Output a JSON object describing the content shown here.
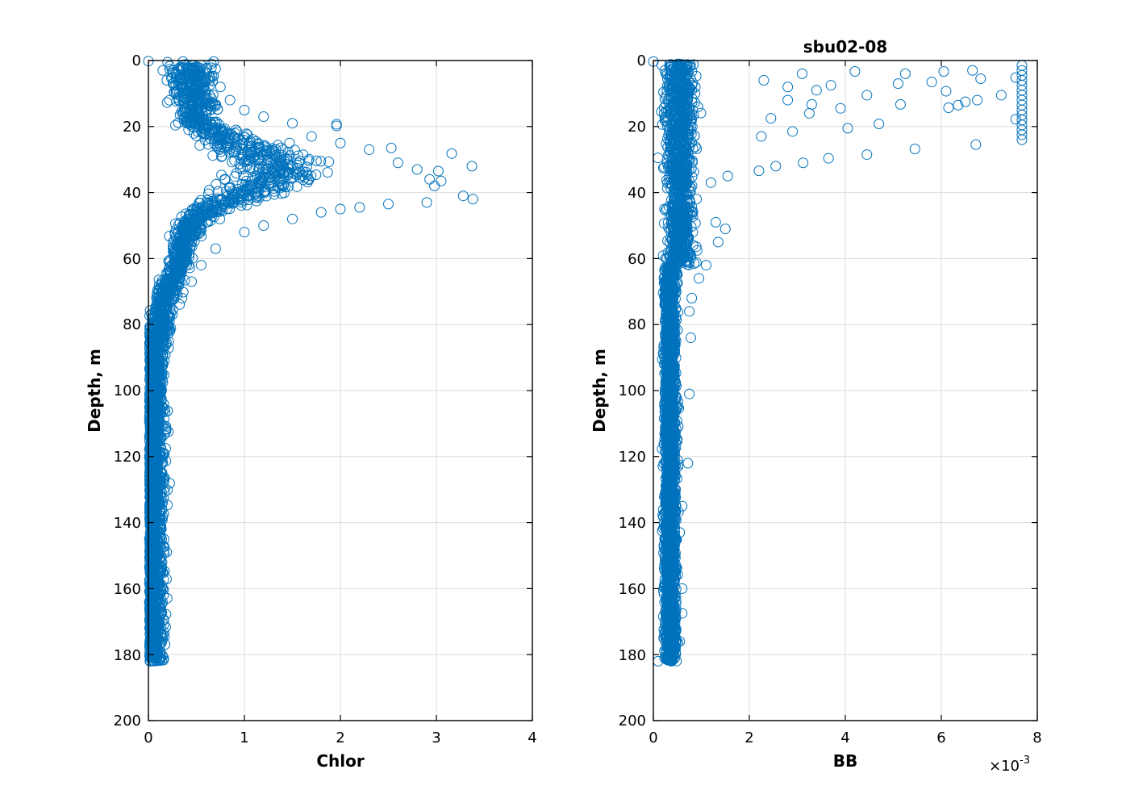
{
  "chart_data": [
    {
      "type": "scatter",
      "title": "",
      "xlabel": "Chlor",
      "ylabel": "Depth, m",
      "xlim": [
        0,
        4
      ],
      "ylim": [
        0,
        200
      ],
      "y_reversed": true,
      "xticks": [
        "0",
        "1",
        "2",
        "3",
        "4"
      ],
      "yticks": [
        "0",
        "20",
        "40",
        "60",
        "80",
        "100",
        "120",
        "140",
        "160",
        "180",
        "200"
      ],
      "grid": true,
      "marker": "open-circle",
      "color": "#0072bd",
      "points": [
        [
          0.0,
          0.2
        ],
        [
          0.68,
          0.3
        ],
        [
          0.36,
          0.3
        ],
        [
          0.2,
          0.5
        ],
        [
          0.15,
          3.0
        ],
        [
          0.7,
          2.5
        ],
        [
          0.75,
          8.0
        ],
        [
          0.85,
          12.0
        ],
        [
          1.0,
          15.0
        ],
        [
          1.2,
          17.0
        ],
        [
          1.5,
          19.0
        ],
        [
          1.96,
          19.3
        ],
        [
          1.96,
          19.8
        ],
        [
          1.7,
          23.0
        ],
        [
          2.0,
          25.0
        ],
        [
          2.3,
          27.0
        ],
        [
          2.53,
          26.5
        ],
        [
          2.6,
          31.0
        ],
        [
          2.8,
          33.0
        ],
        [
          3.16,
          28.2
        ],
        [
          3.37,
          32.0
        ],
        [
          3.02,
          33.5
        ],
        [
          2.93,
          36.0
        ],
        [
          3.05,
          36.5
        ],
        [
          2.98,
          38.0
        ],
        [
          3.28,
          41.0
        ],
        [
          3.38,
          42.0
        ],
        [
          2.9,
          43.0
        ],
        [
          2.5,
          43.5
        ],
        [
          2.2,
          44.5
        ],
        [
          2.0,
          45.0
        ],
        [
          1.8,
          46.0
        ],
        [
          1.5,
          48.0
        ],
        [
          1.2,
          50.0
        ],
        [
          1.0,
          52.0
        ],
        [
          0.7,
          57.0
        ],
        [
          0.55,
          62.0
        ],
        [
          0.45,
          67.0
        ],
        [
          0.35,
          72.0
        ],
        [
          0.25,
          77.0
        ],
        [
          0.2,
          80.0
        ],
        [
          0.18,
          86.0
        ],
        [
          0.15,
          92.0
        ],
        [
          0.12,
          100.0
        ],
        [
          0.1,
          110.0
        ],
        [
          0.08,
          125.0
        ],
        [
          0.07,
          140.0
        ],
        [
          0.13,
          151.8
        ],
        [
          0.05,
          165.0
        ],
        [
          0.05,
          181.0
        ],
        [
          0.02,
          182.0
        ]
      ]
    },
    {
      "type": "scatter",
      "title": "sbu02-08",
      "xlabel": "BB",
      "ylabel": "Depth, m",
      "xlim": [
        0,
        8
      ],
      "ylim": [
        0,
        200
      ],
      "y_reversed": true,
      "x_scale_label": "×10",
      "x_scale_exponent": "-3",
      "xticks": [
        "0",
        "2",
        "4",
        "6",
        "8"
      ],
      "yticks": [
        "0",
        "20",
        "40",
        "60",
        "80",
        "100",
        "120",
        "140",
        "160",
        "180",
        "200"
      ],
      "grid": true,
      "marker": "open-circle",
      "color": "#0072bd",
      "points": [
        [
          0.0,
          0.3
        ],
        [
          2.3,
          6.0
        ],
        [
          3.1,
          4.0
        ],
        [
          4.2,
          3.3
        ],
        [
          5.25,
          4.0
        ],
        [
          6.05,
          3.3
        ],
        [
          6.65,
          3.0
        ],
        [
          6.82,
          5.5
        ],
        [
          7.55,
          5.2
        ],
        [
          5.8,
          6.5
        ],
        [
          5.1,
          7.0
        ],
        [
          3.7,
          7.5
        ],
        [
          2.8,
          8.0
        ],
        [
          3.4,
          9.0
        ],
        [
          4.45,
          10.5
        ],
        [
          6.1,
          9.3
        ],
        [
          7.25,
          10.5
        ],
        [
          5.15,
          13.3
        ],
        [
          3.3,
          13.3
        ],
        [
          2.8,
          12.0
        ],
        [
          6.15,
          14.3
        ],
        [
          6.75,
          12.0
        ],
        [
          6.5,
          12.5
        ],
        [
          6.35,
          13.5
        ],
        [
          3.9,
          14.5
        ],
        [
          3.25,
          16.0
        ],
        [
          2.45,
          17.5
        ],
        [
          7.55,
          17.8
        ],
        [
          4.7,
          19.2
        ],
        [
          4.05,
          20.5
        ],
        [
          2.9,
          21.5
        ],
        [
          2.25,
          23.0
        ],
        [
          6.72,
          25.5
        ],
        [
          5.45,
          26.8
        ],
        [
          4.45,
          28.5
        ],
        [
          3.65,
          29.6
        ],
        [
          3.12,
          31.0
        ],
        [
          2.55,
          32.0
        ],
        [
          2.2,
          33.4
        ],
        [
          1.55,
          35.0
        ],
        [
          1.2,
          37.0
        ],
        [
          0.9,
          42.0
        ],
        [
          1.3,
          49.0
        ],
        [
          1.5,
          51.0
        ],
        [
          1.35,
          55.0
        ],
        [
          1.1,
          62.0
        ],
        [
          0.95,
          66.0
        ],
        [
          0.8,
          72.0
        ],
        [
          0.75,
          76.0
        ],
        [
          0.78,
          84.0
        ],
        [
          0.75,
          101.0
        ],
        [
          0.72,
          122.0
        ],
        [
          0.6,
          135.0
        ],
        [
          0.55,
          143.0
        ],
        [
          0.6,
          160.0
        ],
        [
          0.6,
          167.5
        ],
        [
          0.55,
          176.0
        ],
        [
          0.45,
          181.0
        ],
        [
          0.1,
          182.0
        ]
      ],
      "saturated_column_x": 7.68,
      "saturated_column_depths": [
        1.5,
        3.0,
        4.5,
        6.0,
        7.5,
        9.0,
        10.5,
        12.0,
        13.5,
        15.0,
        16.5,
        18.0,
        19.5,
        21.0,
        22.5,
        24.0
      ]
    }
  ]
}
